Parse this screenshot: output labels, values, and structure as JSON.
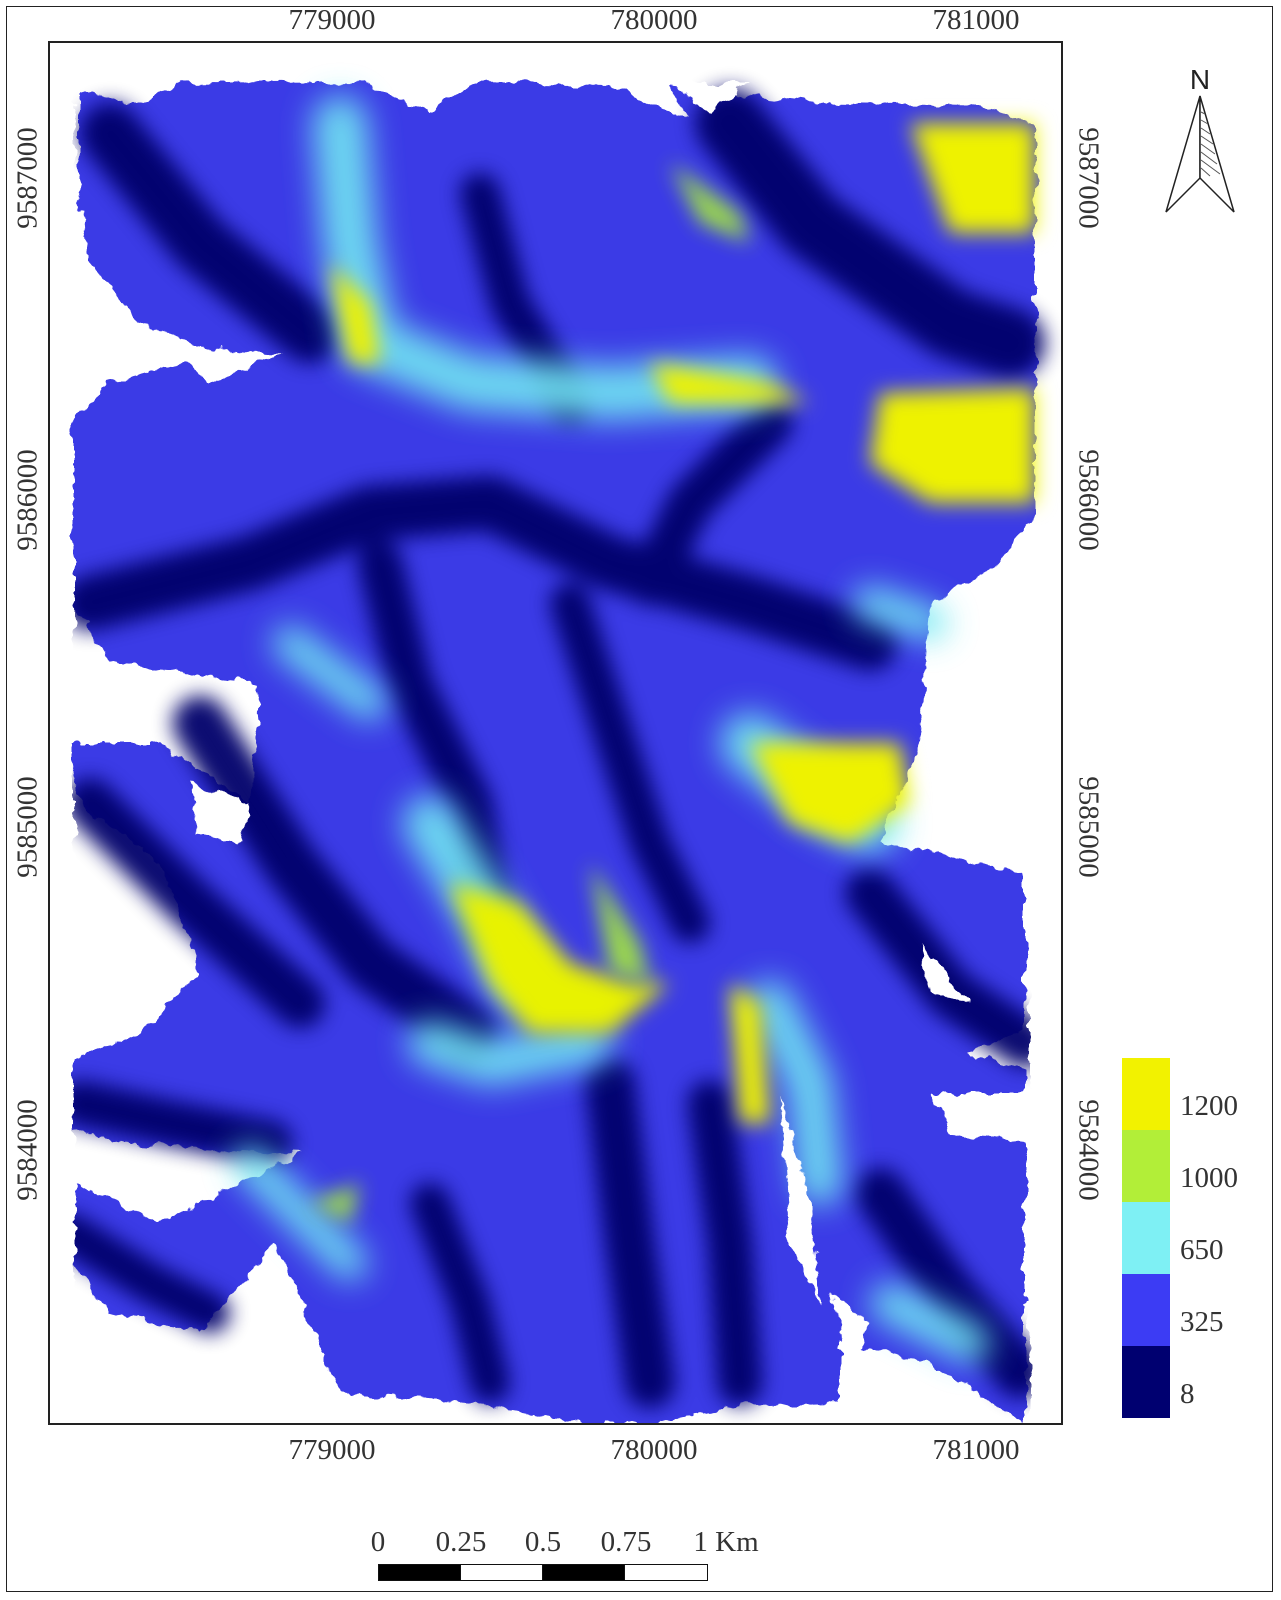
{
  "map": {
    "x_ticks": [
      "779000",
      "780000",
      "781000"
    ],
    "y_ticks": [
      "9587000",
      "9586000",
      "9585000",
      "9584000"
    ],
    "legend": [
      {
        "label": "1200",
        "color": "#f2f200"
      },
      {
        "label": "1000",
        "color": "#b2ee38"
      },
      {
        "label": "650",
        "color": "#7ef0f4"
      },
      {
        "label": "325",
        "color": "#3c3cf4"
      },
      {
        "label": "8",
        "color": "#000070"
      }
    ],
    "north_arrow": {
      "icon": "north-arrow-icon",
      "letter": "N"
    },
    "scale_bar": {
      "labels": [
        "0",
        "0.25",
        "0.5",
        "0.75",
        "1 Km"
      ],
      "segment_colors": [
        "#000000",
        "#ffffff",
        "#000000",
        "#ffffff"
      ]
    },
    "raster_palette": {
      "low": "#000070",
      "mid": "#3c3cf4",
      "high": "#7ef0f4",
      "peak": "#f2f200"
    }
  }
}
